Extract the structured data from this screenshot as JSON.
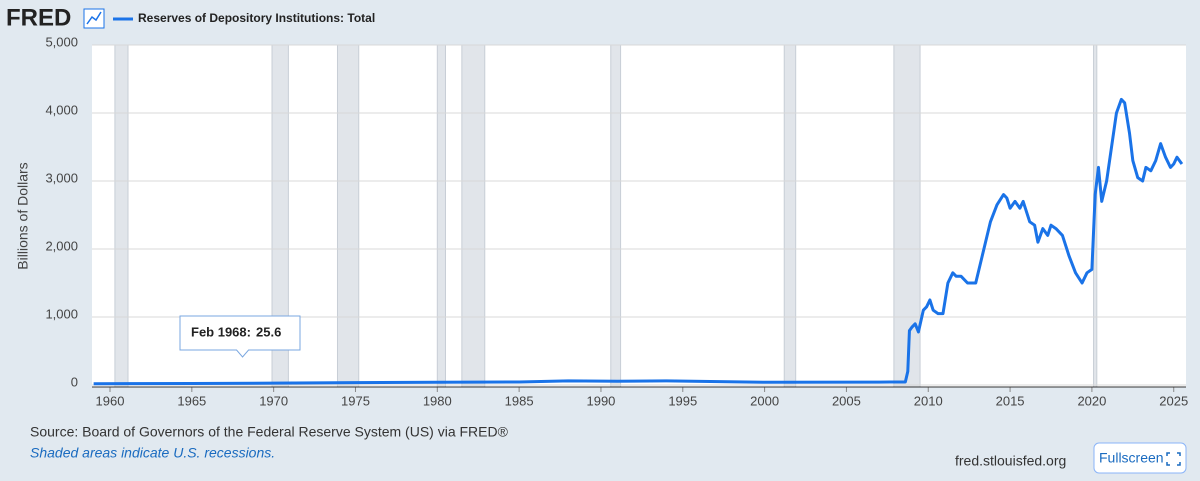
{
  "header": {
    "logo": "FRED"
  },
  "chart_data": {
    "type": "line",
    "y_label": "Billions of Dollars",
    "series": [
      {
        "name": "Reserves of Depository Institutions: Total",
        "color": "#1a73e8",
        "x": [
          1959,
          1965,
          1970,
          1975,
          1980,
          1985,
          1988,
          1991,
          1994,
          2000,
          2007,
          2008.6,
          2008.75,
          2008.85,
          2009.0,
          2009.2,
          2009.4,
          2009.7,
          2009.9,
          2010.1,
          2010.3,
          2010.6,
          2010.9,
          2011.2,
          2011.5,
          2011.7,
          2012.0,
          2012.4,
          2012.9,
          2013.3,
          2013.8,
          2014.2,
          2014.6,
          2014.8,
          2015.0,
          2015.3,
          2015.6,
          2015.8,
          2016.2,
          2016.5,
          2016.7,
          2017.0,
          2017.3,
          2017.5,
          2017.8,
          2018.2,
          2018.6,
          2019.0,
          2019.4,
          2019.7,
          2020.0,
          2020.2,
          2020.4,
          2020.6,
          2020.9,
          2021.2,
          2021.5,
          2021.8,
          2022.0,
          2022.3,
          2022.5,
          2022.8,
          2023.1,
          2023.3,
          2023.6,
          2023.9,
          2024.2,
          2024.5,
          2024.8,
          2025.0,
          2025.2,
          2025.5
        ],
        "values": [
          18,
          22,
          27,
          35,
          40,
          45,
          60,
          55,
          60,
          40,
          43,
          45,
          200,
          800,
          850,
          900,
          780,
          1100,
          1150,
          1250,
          1100,
          1050,
          1050,
          1500,
          1650,
          1600,
          1600,
          1500,
          1500,
          1900,
          2400,
          2650,
          2800,
          2750,
          2600,
          2700,
          2600,
          2700,
          2400,
          2350,
          2100,
          2300,
          2200,
          2350,
          2300,
          2200,
          1900,
          1650,
          1500,
          1650,
          1700,
          2800,
          3200,
          2700,
          3000,
          3500,
          4000,
          4200,
          4150,
          3700,
          3300,
          3050,
          3000,
          3200,
          3150,
          3300,
          3550,
          3350,
          3200,
          3250,
          3350,
          3250
        ]
      }
    ],
    "recessions": [
      [
        1960.3,
        1961.1
      ],
      [
        1969.9,
        1970.9
      ],
      [
        1973.9,
        1975.2
      ],
      [
        1980.0,
        1980.5
      ],
      [
        1981.5,
        1982.9
      ],
      [
        1990.6,
        1991.2
      ],
      [
        2001.2,
        2001.9
      ],
      [
        2007.9,
        2009.5
      ],
      [
        2020.1,
        2020.3
      ]
    ],
    "xlim": [
      1958.9,
      2025.75
    ],
    "xticks": [
      1960,
      1965,
      1970,
      1975,
      1980,
      1985,
      1990,
      1995,
      2000,
      2005,
      2010,
      2015,
      2020,
      2025
    ],
    "ylim": [
      0,
      5000
    ],
    "yticks": [
      0,
      {
        "value": 1000,
        "label": "1,000"
      },
      {
        "value": 2000,
        "label": "2,000"
      },
      {
        "value": 3000,
        "label": "3,000"
      },
      {
        "value": 4000,
        "label": "4,000"
      },
      {
        "value": 5000,
        "label": "5,000"
      }
    ],
    "grid": true,
    "tooltip": {
      "label": "Feb 1968:",
      "x": 1968.1,
      "value": 25.6
    }
  },
  "footer": {
    "source": "Source: Board of Governors of the Federal Reserve System (US) via FRED®",
    "note": "Shaded areas indicate U.S. recessions.",
    "site": "fred.stlouisfed.org",
    "button": "Fullscreen"
  }
}
